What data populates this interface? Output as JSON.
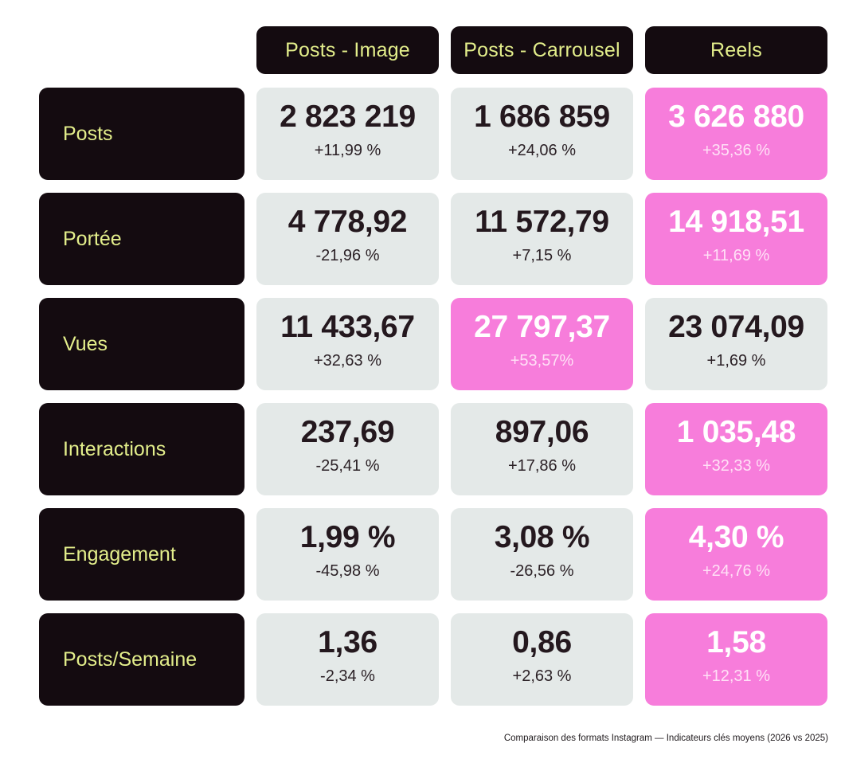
{
  "chart_data": {
    "type": "table",
    "columns": [
      "Posts - Image",
      "Posts - Carrousel",
      "Reels"
    ],
    "rows": [
      {
        "label": "Posts",
        "cells": [
          {
            "value": "2 823 219",
            "change": "+11,99 %",
            "highlight": false
          },
          {
            "value": "1 686 859",
            "change": "+24,06 %",
            "highlight": false
          },
          {
            "value": "3 626 880",
            "change": "+35,36 %",
            "highlight": true
          }
        ]
      },
      {
        "label": "Portée",
        "cells": [
          {
            "value": "4 778,92",
            "change": "-21,96 %",
            "highlight": false
          },
          {
            "value": "11 572,79",
            "change": "+7,15 %",
            "highlight": false
          },
          {
            "value": "14 918,51",
            "change": "+11,69 %",
            "highlight": true
          }
        ]
      },
      {
        "label": "Vues",
        "cells": [
          {
            "value": "11 433,67",
            "change": "+32,63 %",
            "highlight": false
          },
          {
            "value": "27 797,37",
            "change": "+53,57%",
            "highlight": true
          },
          {
            "value": "23 074,09",
            "change": "+1,69 %",
            "highlight": false
          }
        ]
      },
      {
        "label": "Interactions",
        "cells": [
          {
            "value": "237,69",
            "change": "-25,41 %",
            "highlight": false
          },
          {
            "value": "897,06",
            "change": "+17,86 %",
            "highlight": false
          },
          {
            "value": "1 035,48",
            "change": "+32,33 %",
            "highlight": true
          }
        ]
      },
      {
        "label": "Engagement",
        "cells": [
          {
            "value": "1,99 %",
            "change": "-45,98 %",
            "highlight": false
          },
          {
            "value": "3,08 %",
            "change": "-26,56 %",
            "highlight": false
          },
          {
            "value": "4,30 %",
            "change": "+24,76 %",
            "highlight": true
          }
        ]
      },
      {
        "label": "Posts/Semaine",
        "cells": [
          {
            "value": "1,36",
            "change": "-2,34 %",
            "highlight": false
          },
          {
            "value": "0,86",
            "change": "+2,63 %",
            "highlight": false
          },
          {
            "value": "1,58",
            "change": "+12,31 %",
            "highlight": true
          }
        ]
      }
    ],
    "caption": "Comparaison des formats Instagram — Indicateurs clés moyens (2026 vs 2025)",
    "colors": {
      "label_bg": "#140b10",
      "label_text": "#e3ee8b",
      "cell_bg": "#e4e9e8",
      "highlight_bg": "#f77ddb"
    }
  }
}
